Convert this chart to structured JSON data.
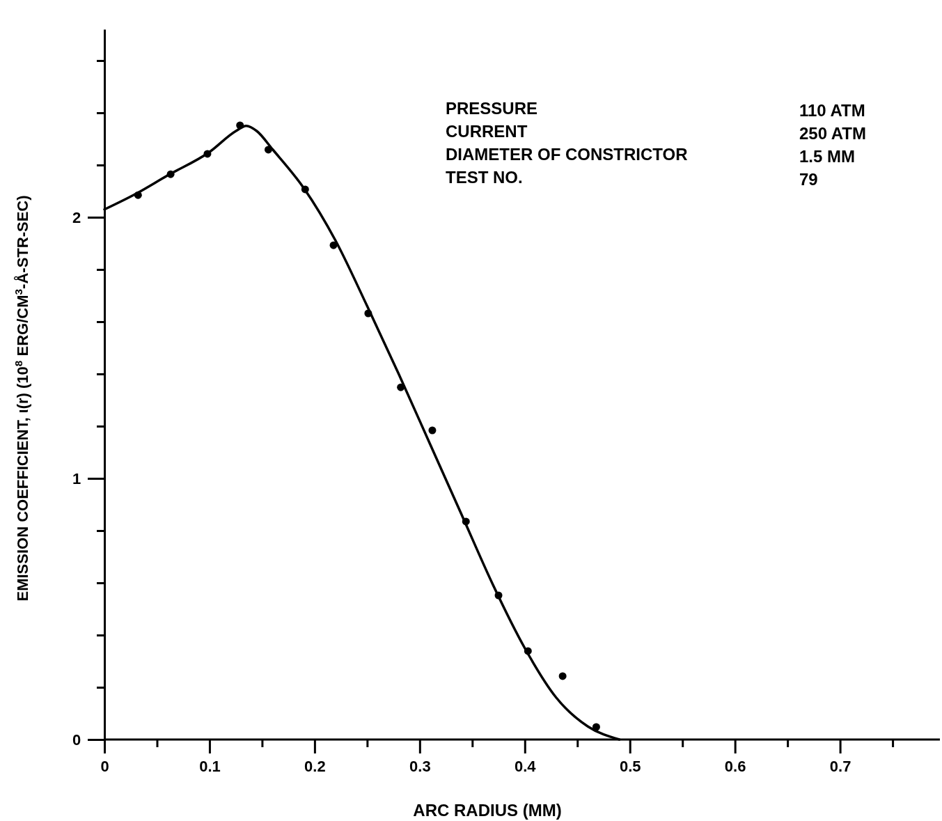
{
  "chart_data": {
    "type": "scatter",
    "xlabel": "ARC RADIUS (MM)",
    "ylabel": "EMISSION COEFFICIENT, ι(r) (10$^{8}$ ERG/CM$^{3}$-Å-STR-SEC)",
    "annotations": [
      "PRESSURE",
      "110 ATM",
      "CURRENT",
      "250 ATM",
      "DIAMETER OF CONSTRICTOR",
      "1.5 MM",
      "TEST NO.",
      "79"
    ],
    "xlim": [
      0,
      0.795
    ],
    "ylim": [
      0,
      2.72
    ],
    "xticks": [
      0,
      {
        "value": 0.05,
        "label": null
      },
      {
        "value": 0.1,
        "label": "0.1"
      },
      {
        "value": 0.15,
        "label": null
      },
      {
        "value": 0.2,
        "label": "0.2"
      },
      {
        "value": 0.25,
        "label": null
      },
      {
        "value": 0.3,
        "label": "0.3"
      },
      {
        "value": 0.35,
        "label": null
      },
      {
        "value": 0.4,
        "label": "0.4"
      },
      {
        "value": 0.45,
        "label": null
      },
      {
        "value": 0.5,
        "label": "0.5"
      },
      {
        "value": 0.55,
        "label": null
      },
      {
        "value": 0.6,
        "label": "0.6"
      },
      {
        "value": 0.65,
        "label": null
      },
      {
        "value": 0.7,
        "label": "0.7"
      },
      {
        "value": 0.75,
        "label": null
      }
    ],
    "yticks": [
      0,
      {
        "value": 0.2,
        "label": null
      },
      {
        "value": 0.4,
        "label": null
      },
      {
        "value": 0.6,
        "label": null
      },
      {
        "value": 0.8,
        "label": null
      },
      1,
      {
        "value": 1.2,
        "label": null
      },
      {
        "value": 1.4,
        "label": null
      },
      {
        "value": 1.6,
        "label": null
      },
      {
        "value": 1.8,
        "label": null
      },
      2,
      {
        "value": 2.2,
        "label": null
      },
      {
        "value": 2.4,
        "label": null
      },
      {
        "value": 2.6,
        "label": null
      }
    ],
    "grid": false,
    "series": [
      {
        "type": "scatter",
        "color": "#000000",
        "marker": "circle",
        "x": [
          0.032,
          0.063,
          0.098,
          0.129,
          0.156,
          0.191,
          0.218,
          0.251,
          0.282,
          0.312,
          0.344,
          0.375,
          0.403,
          0.436,
          0.468
        ],
        "values": [
          2.085,
          2.165,
          2.243,
          2.352,
          2.259,
          2.107,
          1.893,
          1.632,
          1.349,
          1.184,
          0.835,
          0.552,
          0.339,
          0.243,
          0.048
        ]
      },
      {
        "type": "line",
        "color": "#000000",
        "marker": "none",
        "line_style": "solid",
        "x": [
          0,
          0.03,
          0.06,
          0.1,
          0.125,
          0.135,
          0.145,
          0.16,
          0.19,
          0.22,
          0.25,
          0.28,
          0.31,
          0.34,
          0.37,
          0.4,
          0.43,
          0.46,
          0.49
        ],
        "values": [
          2.03,
          2.09,
          2.16,
          2.25,
          2.33,
          2.35,
          2.33,
          2.26,
          2.11,
          1.91,
          1.66,
          1.4,
          1.13,
          0.86,
          0.59,
          0.35,
          0.16,
          0.05,
          0
        ]
      }
    ]
  }
}
